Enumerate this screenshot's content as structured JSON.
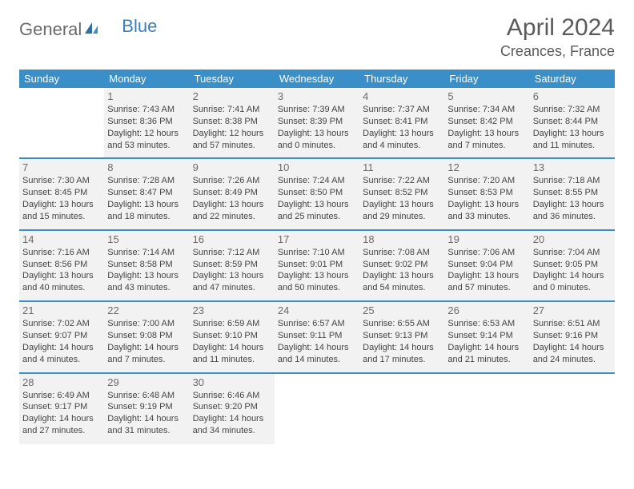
{
  "logo": {
    "part1": "General",
    "part2": "Blue"
  },
  "title": "April 2024",
  "location": "Creances, France",
  "colors": {
    "header_bg": "#3a8fc9",
    "header_text": "#ffffff",
    "cell_bg": "#f2f2f2",
    "rule": "#3a8fc9",
    "text": "#454545"
  },
  "day_headers": [
    "Sunday",
    "Monday",
    "Tuesday",
    "Wednesday",
    "Thursday",
    "Friday",
    "Saturday"
  ],
  "days": {
    "1": {
      "sunrise": "7:43 AM",
      "sunset": "8:36 PM",
      "daylight": "12 hours and 53 minutes."
    },
    "2": {
      "sunrise": "7:41 AM",
      "sunset": "8:38 PM",
      "daylight": "12 hours and 57 minutes."
    },
    "3": {
      "sunrise": "7:39 AM",
      "sunset": "8:39 PM",
      "daylight": "13 hours and 0 minutes."
    },
    "4": {
      "sunrise": "7:37 AM",
      "sunset": "8:41 PM",
      "daylight": "13 hours and 4 minutes."
    },
    "5": {
      "sunrise": "7:34 AM",
      "sunset": "8:42 PM",
      "daylight": "13 hours and 7 minutes."
    },
    "6": {
      "sunrise": "7:32 AM",
      "sunset": "8:44 PM",
      "daylight": "13 hours and 11 minutes."
    },
    "7": {
      "sunrise": "7:30 AM",
      "sunset": "8:45 PM",
      "daylight": "13 hours and 15 minutes."
    },
    "8": {
      "sunrise": "7:28 AM",
      "sunset": "8:47 PM",
      "daylight": "13 hours and 18 minutes."
    },
    "9": {
      "sunrise": "7:26 AM",
      "sunset": "8:49 PM",
      "daylight": "13 hours and 22 minutes."
    },
    "10": {
      "sunrise": "7:24 AM",
      "sunset": "8:50 PM",
      "daylight": "13 hours and 25 minutes."
    },
    "11": {
      "sunrise": "7:22 AM",
      "sunset": "8:52 PM",
      "daylight": "13 hours and 29 minutes."
    },
    "12": {
      "sunrise": "7:20 AM",
      "sunset": "8:53 PM",
      "daylight": "13 hours and 33 minutes."
    },
    "13": {
      "sunrise": "7:18 AM",
      "sunset": "8:55 PM",
      "daylight": "13 hours and 36 minutes."
    },
    "14": {
      "sunrise": "7:16 AM",
      "sunset": "8:56 PM",
      "daylight": "13 hours and 40 minutes."
    },
    "15": {
      "sunrise": "7:14 AM",
      "sunset": "8:58 PM",
      "daylight": "13 hours and 43 minutes."
    },
    "16": {
      "sunrise": "7:12 AM",
      "sunset": "8:59 PM",
      "daylight": "13 hours and 47 minutes."
    },
    "17": {
      "sunrise": "7:10 AM",
      "sunset": "9:01 PM",
      "daylight": "13 hours and 50 minutes."
    },
    "18": {
      "sunrise": "7:08 AM",
      "sunset": "9:02 PM",
      "daylight": "13 hours and 54 minutes."
    },
    "19": {
      "sunrise": "7:06 AM",
      "sunset": "9:04 PM",
      "daylight": "13 hours and 57 minutes."
    },
    "20": {
      "sunrise": "7:04 AM",
      "sunset": "9:05 PM",
      "daylight": "14 hours and 0 minutes."
    },
    "21": {
      "sunrise": "7:02 AM",
      "sunset": "9:07 PM",
      "daylight": "14 hours and 4 minutes."
    },
    "22": {
      "sunrise": "7:00 AM",
      "sunset": "9:08 PM",
      "daylight": "14 hours and 7 minutes."
    },
    "23": {
      "sunrise": "6:59 AM",
      "sunset": "9:10 PM",
      "daylight": "14 hours and 11 minutes."
    },
    "24": {
      "sunrise": "6:57 AM",
      "sunset": "9:11 PM",
      "daylight": "14 hours and 14 minutes."
    },
    "25": {
      "sunrise": "6:55 AM",
      "sunset": "9:13 PM",
      "daylight": "14 hours and 17 minutes."
    },
    "26": {
      "sunrise": "6:53 AM",
      "sunset": "9:14 PM",
      "daylight": "14 hours and 21 minutes."
    },
    "27": {
      "sunrise": "6:51 AM",
      "sunset": "9:16 PM",
      "daylight": "14 hours and 24 minutes."
    },
    "28": {
      "sunrise": "6:49 AM",
      "sunset": "9:17 PM",
      "daylight": "14 hours and 27 minutes."
    },
    "29": {
      "sunrise": "6:48 AM",
      "sunset": "9:19 PM",
      "daylight": "14 hours and 31 minutes."
    },
    "30": {
      "sunrise": "6:46 AM",
      "sunset": "9:20 PM",
      "daylight": "14 hours and 34 minutes."
    }
  },
  "labels": {
    "sunrise": "Sunrise: ",
    "sunset": "Sunset: ",
    "daylight": "Daylight: "
  },
  "weeks": [
    [
      null,
      1,
      2,
      3,
      4,
      5,
      6
    ],
    [
      7,
      8,
      9,
      10,
      11,
      12,
      13
    ],
    [
      14,
      15,
      16,
      17,
      18,
      19,
      20
    ],
    [
      21,
      22,
      23,
      24,
      25,
      26,
      27
    ],
    [
      28,
      29,
      30,
      null,
      null,
      null,
      null
    ]
  ]
}
